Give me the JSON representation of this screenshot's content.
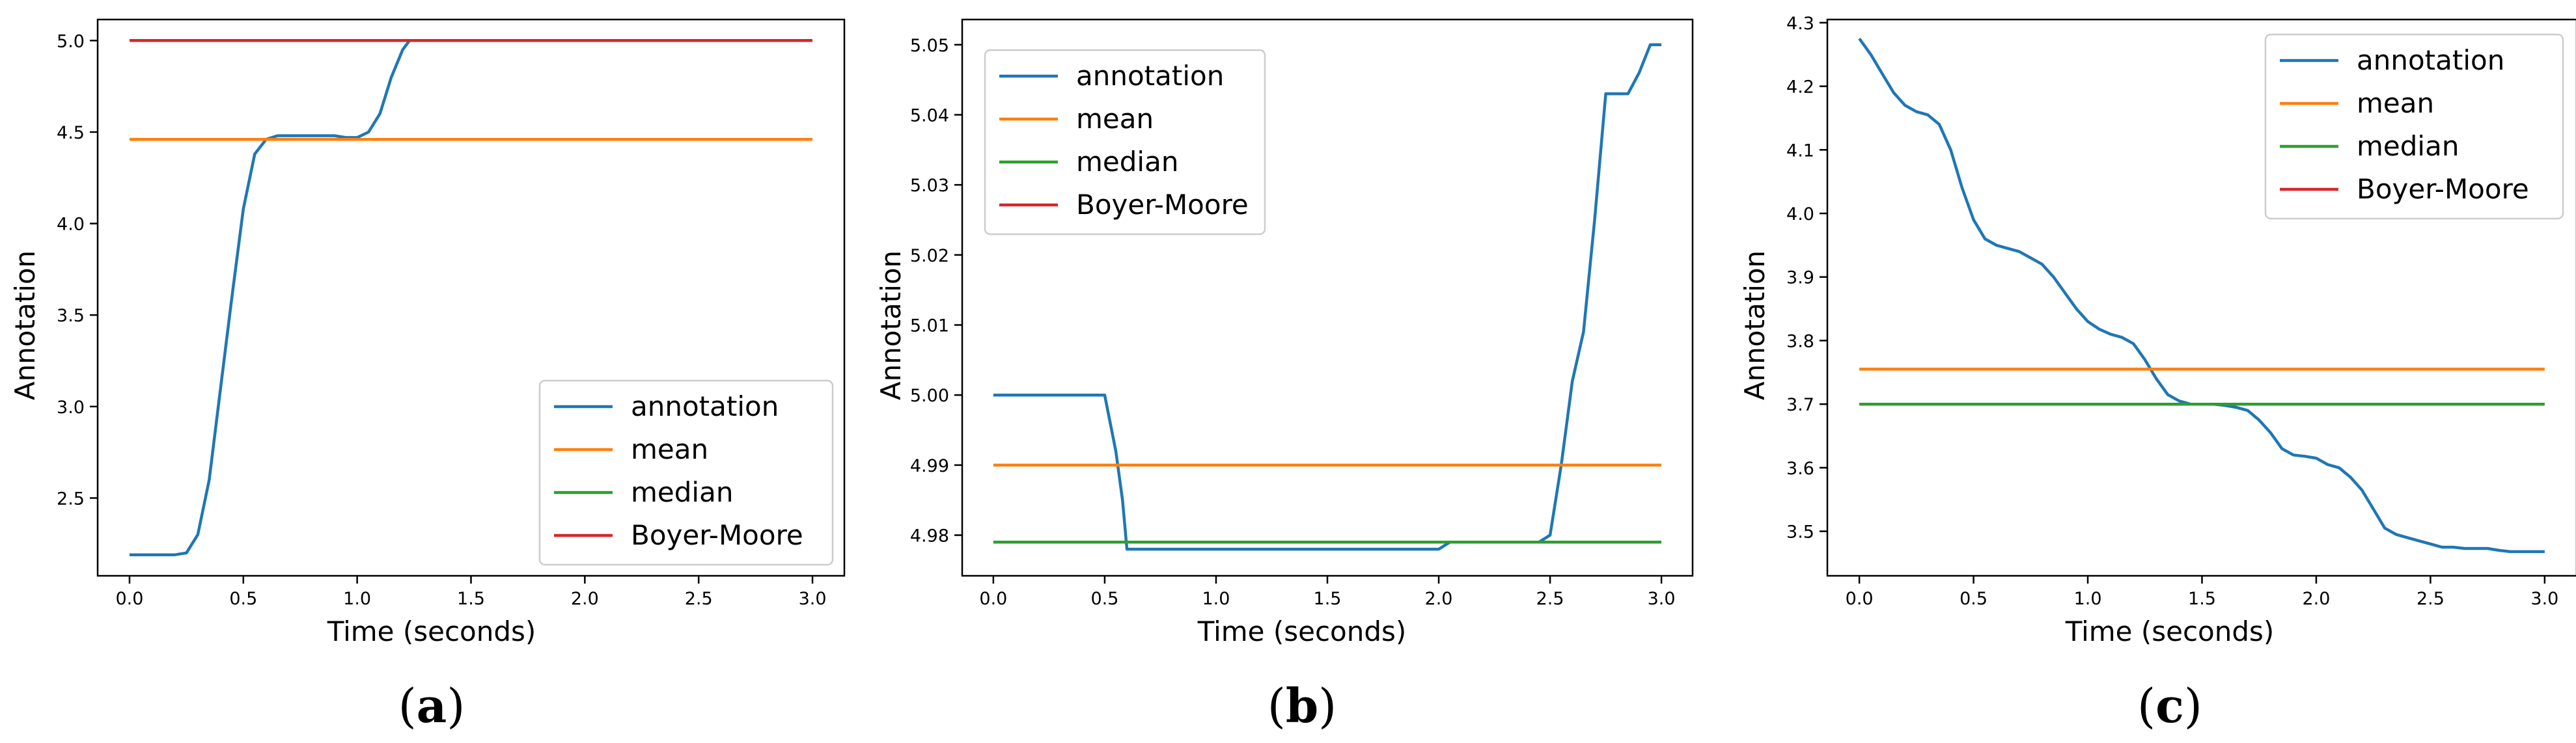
{
  "chart_data": [
    {
      "type": "line",
      "caption": "(a)",
      "caption_letter": "a",
      "xlabel": "Time (seconds)",
      "ylabel": "Annotation",
      "xlim": [
        -0.14,
        3.14
      ],
      "ylim": [
        2.075,
        5.115
      ],
      "xticks": [
        0.0,
        0.5,
        1.0,
        1.5,
        2.0,
        2.5,
        3.0
      ],
      "xtick_labels": [
        "0.0",
        "0.5",
        "1.0",
        "1.5",
        "2.0",
        "2.5",
        "3.0"
      ],
      "yticks": [
        2.5,
        3.0,
        3.5,
        4.0,
        4.5,
        5.0
      ],
      "ytick_labels": [
        "2.5",
        "3.0",
        "3.5",
        "4.0",
        "4.5",
        "5.0"
      ],
      "legend_position": "lower-right",
      "series": [
        {
          "name": "annotation",
          "color": "#1f77b4",
          "x": [
            0.0,
            0.1,
            0.2,
            0.25,
            0.3,
            0.35,
            0.4,
            0.45,
            0.5,
            0.55,
            0.6,
            0.65,
            0.7,
            0.75,
            0.8,
            0.85,
            0.9,
            0.95,
            1.0,
            1.05,
            1.1,
            1.15,
            1.2,
            1.23
          ],
          "y": [
            2.19,
            2.19,
            2.19,
            2.2,
            2.3,
            2.6,
            3.1,
            3.6,
            4.08,
            4.38,
            4.46,
            4.48,
            4.48,
            4.48,
            4.48,
            4.48,
            4.48,
            4.47,
            4.47,
            4.5,
            4.6,
            4.8,
            4.95,
            5.0
          ]
        },
        {
          "name": "mean",
          "color": "#ff7f0e",
          "x": [
            0.0,
            3.0
          ],
          "y": [
            4.46,
            4.46
          ]
        },
        {
          "name": "median",
          "color": "#2ca02c",
          "x": [
            0.0,
            3.0
          ],
          "y": [
            5.0,
            5.0
          ]
        },
        {
          "name": "Boyer-Moore",
          "color": "#d62728",
          "x": [
            0.0,
            3.0
          ],
          "y": [
            5.0,
            5.0
          ]
        }
      ]
    },
    {
      "type": "line",
      "caption": "(b)",
      "caption_letter": "b",
      "xlabel": "Time (seconds)",
      "ylabel": "Annotation",
      "xlim": [
        -0.14,
        3.14
      ],
      "ylim": [
        4.9742,
        5.0536
      ],
      "xticks": [
        0.0,
        0.5,
        1.0,
        1.5,
        2.0,
        2.5,
        3.0
      ],
      "xtick_labels": [
        "0.0",
        "0.5",
        "1.0",
        "1.5",
        "2.0",
        "2.5",
        "3.0"
      ],
      "yticks": [
        4.98,
        4.99,
        5.0,
        5.01,
        5.02,
        5.03,
        5.04,
        5.05
      ],
      "ytick_labels": [
        "4.98",
        "4.99",
        "5.00",
        "5.01",
        "5.02",
        "5.03",
        "5.04",
        "5.05"
      ],
      "legend_position": "upper-left",
      "series": [
        {
          "name": "annotation",
          "color": "#1f77b4",
          "x": [
            0.0,
            0.5,
            0.55,
            0.58,
            0.6,
            0.62,
            2.0,
            2.05,
            2.1,
            2.45,
            2.5,
            2.55,
            2.6,
            2.65,
            2.7,
            2.75,
            2.8,
            2.85,
            2.9,
            2.95,
            3.0
          ],
          "y": [
            5.0,
            5.0,
            4.992,
            4.985,
            4.978,
            4.978,
            4.978,
            4.979,
            4.979,
            4.979,
            4.98,
            4.99,
            5.002,
            5.009,
            5.025,
            5.043,
            5.043,
            5.043,
            5.046,
            5.05,
            5.05
          ]
        },
        {
          "name": "mean",
          "color": "#ff7f0e",
          "x": [
            0.0,
            3.0
          ],
          "y": [
            4.99,
            4.99
          ]
        },
        {
          "name": "median",
          "color": "#2ca02c",
          "x": [
            0.0,
            3.0
          ],
          "y": [
            4.979,
            4.979
          ]
        },
        {
          "name": "Boyer-Moore",
          "color": "#d62728",
          "x": [],
          "y": []
        }
      ]
    },
    {
      "type": "line",
      "caption": "(c)",
      "caption_letter": "c",
      "xlabel": "Time (seconds)",
      "ylabel": "Annotation",
      "xlim": [
        -0.14,
        3.14
      ],
      "ylim": [
        3.43,
        4.305
      ],
      "xticks": [
        0.0,
        0.5,
        1.0,
        1.5,
        2.0,
        2.5,
        3.0
      ],
      "xtick_labels": [
        "0.0",
        "0.5",
        "1.0",
        "1.5",
        "2.0",
        "2.5",
        "3.0"
      ],
      "yticks": [
        3.5,
        3.6,
        3.7,
        3.8,
        3.9,
        4.0,
        4.1,
        4.2,
        4.3
      ],
      "ytick_labels": [
        "3.5",
        "3.6",
        "3.7",
        "3.8",
        "3.9",
        "4.0",
        "4.1",
        "4.2",
        "4.3"
      ],
      "legend_position": "upper-right",
      "series": [
        {
          "name": "annotation",
          "color": "#1f77b4",
          "x": [
            0.0,
            0.05,
            0.1,
            0.15,
            0.2,
            0.25,
            0.3,
            0.35,
            0.4,
            0.45,
            0.5,
            0.55,
            0.6,
            0.65,
            0.7,
            0.75,
            0.8,
            0.85,
            0.9,
            0.95,
            1.0,
            1.05,
            1.1,
            1.15,
            1.2,
            1.25,
            1.3,
            1.35,
            1.4,
            1.45,
            1.5,
            1.55,
            1.6,
            1.65,
            1.7,
            1.75,
            1.8,
            1.85,
            1.9,
            1.95,
            2.0,
            2.05,
            2.1,
            2.15,
            2.2,
            2.25,
            2.3,
            2.35,
            2.4,
            2.45,
            2.5,
            2.55,
            2.6,
            2.65,
            2.7,
            2.75,
            2.8,
            2.85,
            2.9,
            2.95,
            3.0
          ],
          "y": [
            4.275,
            4.25,
            4.22,
            4.19,
            4.17,
            4.16,
            4.155,
            4.14,
            4.1,
            4.04,
            3.99,
            3.96,
            3.95,
            3.945,
            3.94,
            3.93,
            3.92,
            3.9,
            3.875,
            3.85,
            3.83,
            3.818,
            3.81,
            3.805,
            3.795,
            3.77,
            3.74,
            3.715,
            3.705,
            3.7,
            3.7,
            3.7,
            3.698,
            3.695,
            3.69,
            3.675,
            3.655,
            3.63,
            3.62,
            3.618,
            3.615,
            3.605,
            3.6,
            3.585,
            3.565,
            3.535,
            3.505,
            3.495,
            3.49,
            3.485,
            3.48,
            3.475,
            3.475,
            3.473,
            3.473,
            3.473,
            3.47,
            3.468,
            3.468,
            3.468,
            3.468
          ]
        },
        {
          "name": "mean",
          "color": "#ff7f0e",
          "x": [
            0.0,
            3.0
          ],
          "y": [
            3.755,
            3.755
          ]
        },
        {
          "name": "median",
          "color": "#2ca02c",
          "x": [
            0.0,
            3.0
          ],
          "y": [
            3.7,
            3.7
          ]
        },
        {
          "name": "Boyer-Moore",
          "color": "#d62728",
          "x": [],
          "y": []
        }
      ]
    }
  ]
}
